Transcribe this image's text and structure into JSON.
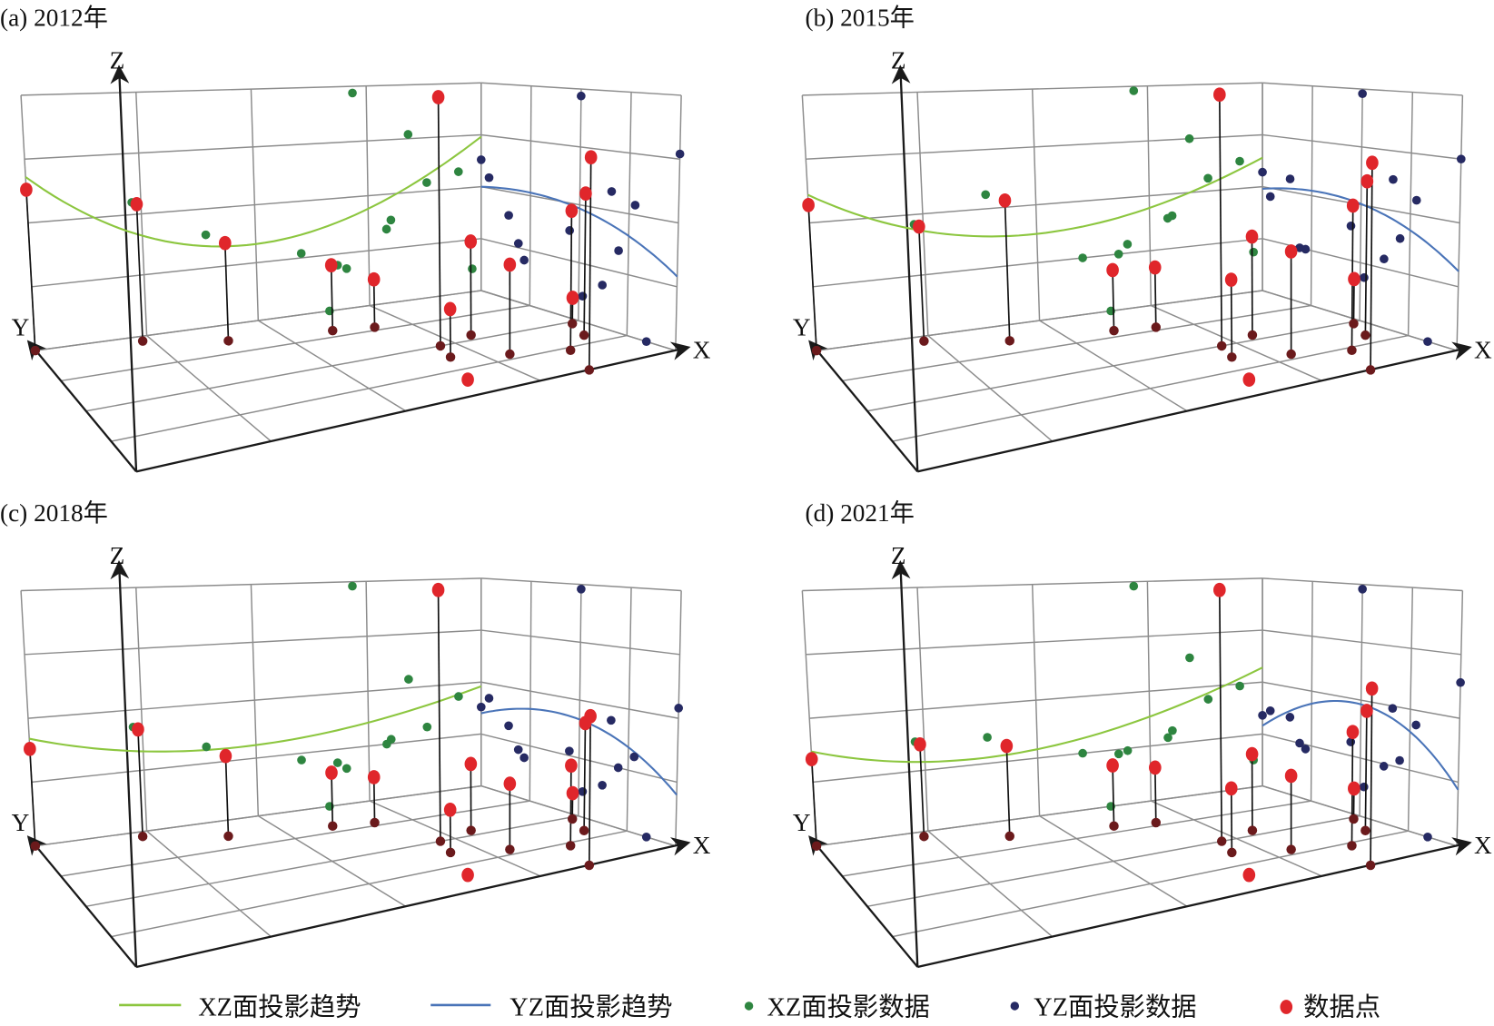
{
  "chart_data": [
    {
      "type": "scatter3d",
      "title": "(a) 2012年",
      "axes": {
        "x": "X",
        "y": "Y",
        "z": "Z"
      },
      "xlim": [
        0,
        100
      ],
      "ylim": [
        0,
        100
      ],
      "zlim": [
        0,
        100
      ],
      "grid": true,
      "points": [
        {
          "x": 0,
          "y": 100,
          "z": 63
        },
        {
          "x": 23,
          "y": 96,
          "z": 55
        },
        {
          "x": 39,
          "y": 86,
          "z": 39
        },
        {
          "x": 60,
          "y": 81,
          "z": 27
        },
        {
          "x": 68,
          "y": 78,
          "z": 20
        },
        {
          "x": 72,
          "y": 50,
          "z": 97
        },
        {
          "x": 70,
          "y": 38,
          "z": 18
        },
        {
          "x": 80,
          "y": 55,
          "z": 38
        },
        {
          "x": 79,
          "y": 30,
          "z": 34
        },
        {
          "x": 88,
          "y": 22,
          "z": 54
        },
        {
          "x": 84,
          "y": 0,
          "z": 77
        },
        {
          "x": 95,
          "y": 34,
          "z": 58
        },
        {
          "x": 98,
          "y": 48,
          "z": 11
        },
        {
          "x": 66,
          "y": 15,
          "z": 0
        }
      ],
      "xz_trend_quadratic": [
        0.68,
        -1.459,
        1.52
      ],
      "yz_trend_quadratic": [
        0.29,
        0.565,
        -0.355
      ]
    },
    {
      "type": "scatter3d",
      "title": "(b) 2015年",
      "axes": {
        "x": "X",
        "y": "Y",
        "z": "Z"
      },
      "xlim": [
        0,
        100
      ],
      "ylim": [
        0,
        100
      ],
      "zlim": [
        0,
        100
      ],
      "grid": true,
      "points": [
        {
          "x": 0,
          "y": 100,
          "z": 57
        },
        {
          "x": 23,
          "y": 96,
          "z": 46
        },
        {
          "x": 39,
          "y": 86,
          "z": 56
        },
        {
          "x": 60,
          "y": 81,
          "z": 25
        },
        {
          "x": 68,
          "y": 78,
          "z": 25
        },
        {
          "x": 72,
          "y": 50,
          "z": 98
        },
        {
          "x": 70,
          "y": 38,
          "z": 29
        },
        {
          "x": 80,
          "y": 55,
          "z": 40
        },
        {
          "x": 79,
          "y": 30,
          "z": 39
        },
        {
          "x": 88,
          "y": 22,
          "z": 56
        },
        {
          "x": 84,
          "y": 0,
          "z": 75
        },
        {
          "x": 95,
          "y": 34,
          "z": 63
        },
        {
          "x": 98,
          "y": 48,
          "z": 19
        },
        {
          "x": 66,
          "y": 15,
          "z": 0
        }
      ],
      "xz_trend_quadratic": [
        0.61,
        -0.972,
        1.002
      ],
      "yz_trend_quadratic": [
        0.31,
        0.595,
        -0.415
      ]
    },
    {
      "type": "scatter3d",
      "title": "(c) 2018年",
      "axes": {
        "x": "X",
        "y": "Y",
        "z": "Z"
      },
      "xlim": [
        0,
        100
      ],
      "ylim": [
        0,
        100
      ],
      "zlim": [
        0,
        100
      ],
      "grid": true,
      "points": [
        {
          "x": 0,
          "y": 100,
          "z": 38
        },
        {
          "x": 23,
          "y": 96,
          "z": 43
        },
        {
          "x": 39,
          "y": 86,
          "z": 32
        },
        {
          "x": 60,
          "y": 81,
          "z": 22
        },
        {
          "x": 68,
          "y": 78,
          "z": 19
        },
        {
          "x": 72,
          "y": 50,
          "z": 98
        },
        {
          "x": 70,
          "y": 38,
          "z": 16
        },
        {
          "x": 80,
          "y": 55,
          "z": 27
        },
        {
          "x": 79,
          "y": 30,
          "z": 25
        },
        {
          "x": 88,
          "y": 22,
          "z": 31
        },
        {
          "x": 84,
          "y": 0,
          "z": 54
        },
        {
          "x": 95,
          "y": 34,
          "z": 44
        },
        {
          "x": 98,
          "y": 48,
          "z": 11
        },
        {
          "x": 66,
          "y": 15,
          "z": 0
        }
      ],
      "xz_trend_quadratic": [
        0.42,
        -0.516,
        0.576
      ],
      "yz_trend_quadratic": [
        0.2,
        0.717,
        -0.567
      ]
    },
    {
      "type": "scatter3d",
      "title": "(d) 2021年",
      "axes": {
        "x": "X",
        "y": "Y",
        "z": "Z"
      },
      "xlim": [
        0,
        100
      ],
      "ylim": [
        0,
        100
      ],
      "zlim": [
        0,
        100
      ],
      "grid": true,
      "points": [
        {
          "x": 0,
          "y": 100,
          "z": 34
        },
        {
          "x": 23,
          "y": 96,
          "z": 37
        },
        {
          "x": 39,
          "y": 86,
          "z": 36
        },
        {
          "x": 60,
          "y": 81,
          "z": 25
        },
        {
          "x": 68,
          "y": 78,
          "z": 23
        },
        {
          "x": 72,
          "y": 50,
          "z": 98
        },
        {
          "x": 70,
          "y": 38,
          "z": 24
        },
        {
          "x": 80,
          "y": 55,
          "z": 31
        },
        {
          "x": 79,
          "y": 30,
          "z": 28
        },
        {
          "x": 88,
          "y": 22,
          "z": 44
        },
        {
          "x": 84,
          "y": 0,
          "z": 64
        },
        {
          "x": 95,
          "y": 34,
          "z": 49
        },
        {
          "x": 98,
          "y": 48,
          "z": 13
        },
        {
          "x": 66,
          "y": 15,
          "z": 0
        }
      ],
      "xz_trend_quadratic": [
        0.37,
        -0.527,
        0.727
      ],
      "yz_trend_quadratic": [
        0.22,
        0.978,
        -0.908
      ]
    }
  ],
  "legend": {
    "placement": "bottom",
    "items": [
      {
        "label": "XZ面投影趋势",
        "kind": "line",
        "color": "#8cc63f"
      },
      {
        "label": "YZ面投影趋势",
        "kind": "line",
        "color": "#4a74b8"
      },
      {
        "label": "XZ面投影数据",
        "kind": "dot",
        "color": "#2e8540"
      },
      {
        "label": "YZ面投影数据",
        "kind": "dot",
        "color": "#262a63"
      },
      {
        "label": "数据点",
        "kind": "dot",
        "color": "#e0262b"
      }
    ]
  },
  "colors": {
    "grid": "#8c8c8c",
    "axis": "#1a1a1a",
    "stem": "#111111",
    "floor_dot": "#6b1a1c",
    "point": "#e0262b",
    "xz_dot": "#2e8540",
    "yz_dot": "#262a63",
    "xz_line": "#8cc63f",
    "yz_line": "#4a74b8"
  }
}
